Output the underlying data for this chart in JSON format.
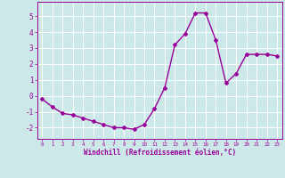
{
  "x": [
    0,
    1,
    2,
    3,
    4,
    5,
    6,
    7,
    8,
    9,
    10,
    11,
    12,
    13,
    14,
    15,
    16,
    17,
    18,
    19,
    20,
    21,
    22,
    23
  ],
  "y": [
    -0.2,
    -0.7,
    -1.1,
    -1.2,
    -1.4,
    -1.6,
    -1.8,
    -2.0,
    -2.0,
    -2.1,
    -1.8,
    -0.8,
    0.5,
    3.2,
    3.9,
    5.2,
    5.2,
    3.5,
    0.8,
    1.4,
    2.6,
    2.6,
    2.6,
    2.5
  ],
  "line_color": "#990099",
  "marker": "D",
  "marker_size": 2.0,
  "linewidth": 1.0,
  "bg_color": "#cce8e8",
  "grid_color": "#ffffff",
  "xlabel": "Windchill (Refroidissement éolien,°C)",
  "xlabel_color": "#990099",
  "tick_color": "#990099",
  "ylabel_ticks": [
    -2,
    -1,
    0,
    1,
    2,
    3,
    4,
    5
  ],
  "xlim": [
    -0.5,
    23.5
  ],
  "ylim": [
    -2.7,
    5.9
  ],
  "xtick_labels": [
    "0",
    "1",
    "2",
    "3",
    "4",
    "5",
    "6",
    "7",
    "8",
    "9",
    "10",
    "11",
    "12",
    "13",
    "14",
    "15",
    "16",
    "17",
    "18",
    "19",
    "20",
    "21",
    "22",
    "23"
  ]
}
